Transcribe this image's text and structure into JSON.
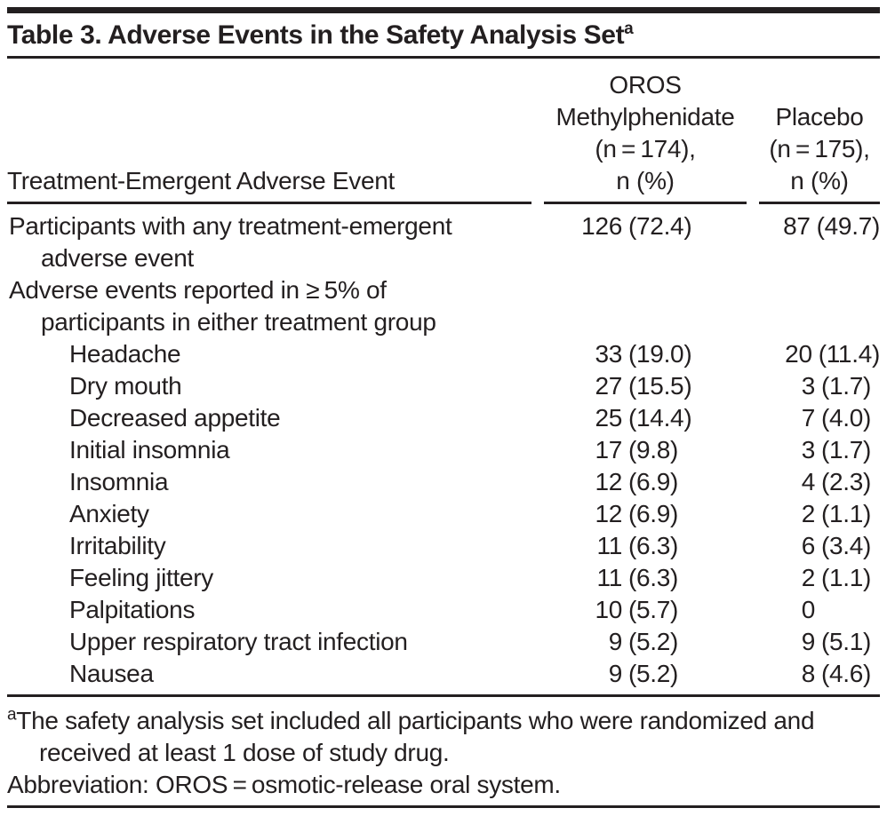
{
  "colors": {
    "text": "#231f20",
    "rule": "#231f20",
    "background": "#ffffff"
  },
  "table": {
    "title": "Table 3. Adverse Events in the Safety Analysis Set",
    "title_sup": "a",
    "header": {
      "col1": "Treatment-Emergent Adverse Event",
      "col2_lines": [
        "OROS",
        "Methylphenidate",
        "(n = 174),",
        "n (%)"
      ],
      "col3_lines": [
        "Placebo",
        "(n = 175),",
        "n (%)"
      ]
    },
    "rows": [
      {
        "label": [
          "Participants with any treatment-emergent",
          "adverse event"
        ],
        "level": 0,
        "oros": {
          "n": "126",
          "pct": "(72.4)"
        },
        "placebo": {
          "n": "87",
          "pct": "(49.7)"
        }
      },
      {
        "label": [
          "Adverse events reported in ≥ 5% of",
          "participants in either treatment group"
        ],
        "level": 0,
        "oros": {
          "n": "",
          "pct": ""
        },
        "placebo": {
          "n": "",
          "pct": ""
        }
      },
      {
        "label": [
          "Headache"
        ],
        "level": 1,
        "oros": {
          "n": "33",
          "pct": "(19.0)"
        },
        "placebo": {
          "n": "20",
          "pct": "(11.4)"
        }
      },
      {
        "label": [
          "Dry mouth"
        ],
        "level": 1,
        "oros": {
          "n": "27",
          "pct": "(15.5)"
        },
        "placebo": {
          "n": "3",
          "pct": "(1.7)"
        }
      },
      {
        "label": [
          "Decreased appetite"
        ],
        "level": 1,
        "oros": {
          "n": "25",
          "pct": "(14.4)"
        },
        "placebo": {
          "n": "7",
          "pct": "(4.0)"
        }
      },
      {
        "label": [
          "Initial insomnia"
        ],
        "level": 1,
        "oros": {
          "n": "17",
          "pct": "(9.8)"
        },
        "placebo": {
          "n": "3",
          "pct": "(1.7)"
        }
      },
      {
        "label": [
          "Insomnia"
        ],
        "level": 1,
        "oros": {
          "n": "12",
          "pct": "(6.9)"
        },
        "placebo": {
          "n": "4",
          "pct": "(2.3)"
        }
      },
      {
        "label": [
          "Anxiety"
        ],
        "level": 1,
        "oros": {
          "n": "12",
          "pct": "(6.9)"
        },
        "placebo": {
          "n": "2",
          "pct": "(1.1)"
        }
      },
      {
        "label": [
          "Irritability"
        ],
        "level": 1,
        "oros": {
          "n": "11",
          "pct": "(6.3)"
        },
        "placebo": {
          "n": "6",
          "pct": "(3.4)"
        }
      },
      {
        "label": [
          "Feeling jittery"
        ],
        "level": 1,
        "oros": {
          "n": "11",
          "pct": "(6.3)"
        },
        "placebo": {
          "n": "2",
          "pct": "(1.1)"
        }
      },
      {
        "label": [
          "Palpitations"
        ],
        "level": 1,
        "oros": {
          "n": "10",
          "pct": "(5.7)"
        },
        "placebo": {
          "n": "0",
          "pct": ""
        }
      },
      {
        "label": [
          "Upper respiratory tract infection"
        ],
        "level": 1,
        "oros": {
          "n": "9",
          "pct": "(5.2)"
        },
        "placebo": {
          "n": "9",
          "pct": "(5.1)"
        }
      },
      {
        "label": [
          "Nausea"
        ],
        "level": 1,
        "oros": {
          "n": "9",
          "pct": "(5.2)"
        },
        "placebo": {
          "n": "8",
          "pct": "(4.6)"
        }
      }
    ],
    "footnotes": {
      "a_marker": "a",
      "a_lines": [
        "The safety analysis set included all participants who were randomized and",
        "received at least 1 dose of study drug."
      ],
      "abbreviation": "Abbreviation: OROS = osmotic-release oral system."
    }
  }
}
